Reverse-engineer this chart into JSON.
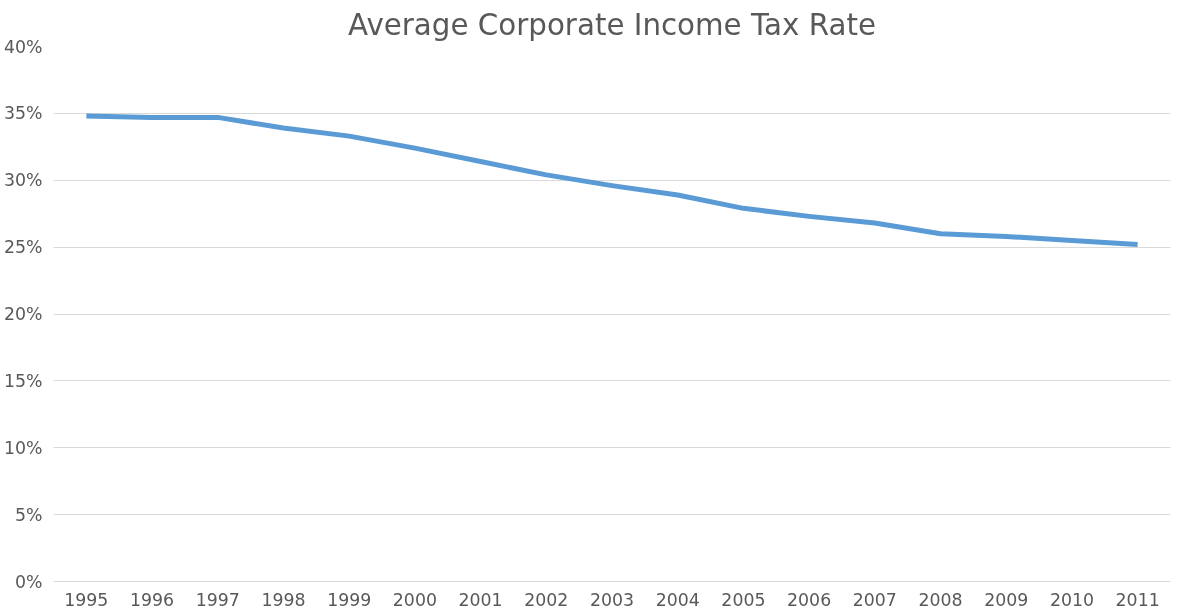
{
  "chart_data": {
    "type": "line",
    "title": "Average Corporate Income Tax Rate",
    "categories": [
      "1995",
      "1996",
      "1997",
      "1998",
      "1999",
      "2000",
      "2001",
      "2002",
      "2003",
      "2004",
      "2005",
      "2006",
      "2007",
      "2008",
      "2009",
      "2010",
      "2011"
    ],
    "series": [
      {
        "color": "#5b9bd5",
        "values": [
          34.8,
          34.7,
          34.7,
          33.9,
          33.3,
          32.4,
          31.4,
          30.4,
          29.6,
          28.9,
          27.9,
          27.3,
          26.8,
          26.0,
          25.8,
          25.5,
          25.2
        ]
      }
    ],
    "ylim": [
      0,
      40
    ],
    "yticks": [
      {
        "value": 0,
        "label": "0%"
      },
      {
        "value": 5,
        "label": "5%"
      },
      {
        "value": 10,
        "label": "10%"
      },
      {
        "value": 15,
        "label": "15%"
      },
      {
        "value": 20,
        "label": "20%"
      },
      {
        "value": 25,
        "label": "25%"
      },
      {
        "value": 30,
        "label": "30%"
      },
      {
        "value": 35,
        "label": "35%"
      },
      {
        "value": 40,
        "label": "40%"
      }
    ],
    "grid": "y",
    "marker": "none",
    "line_style": "solid"
  }
}
